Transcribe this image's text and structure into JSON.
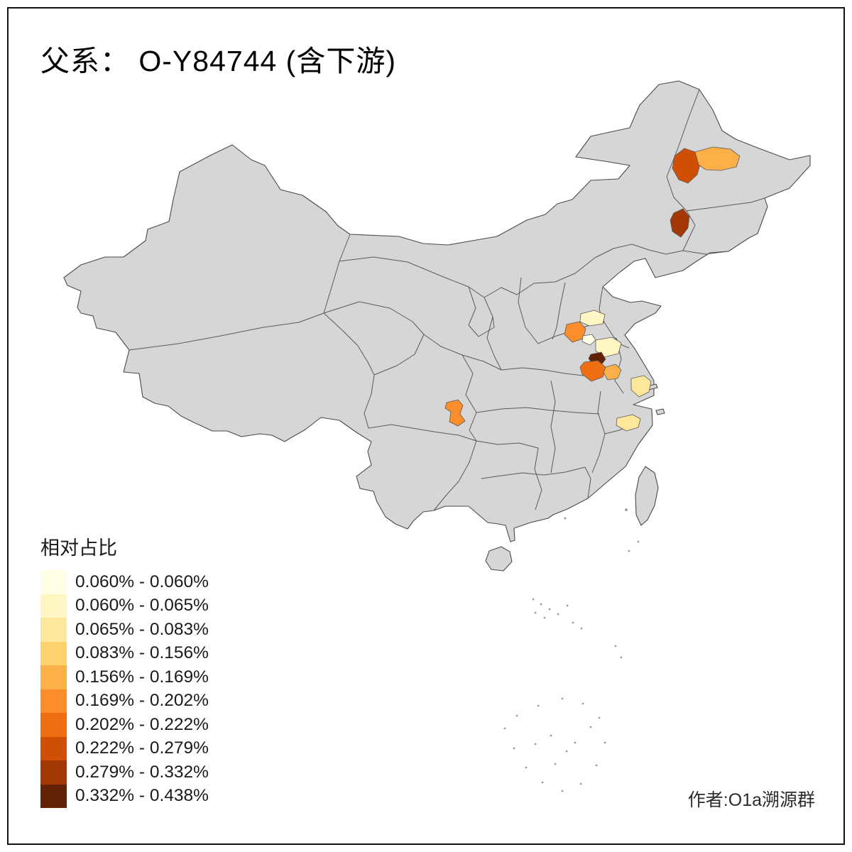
{
  "title": "父系： O-Y84744 (含下游)",
  "author_credit": "作者:O1a溯源群",
  "legend": {
    "title": "相对占比",
    "bins": [
      {
        "label": "0.060% - 0.060%",
        "color": "#FFFFE5"
      },
      {
        "label": "0.060% - 0.065%",
        "color": "#FFF6C3"
      },
      {
        "label": "0.065% - 0.083%",
        "color": "#FEE79B"
      },
      {
        "label": "0.083% - 0.156%",
        "color": "#FED26C"
      },
      {
        "label": "0.156% - 0.169%",
        "color": "#FDB048"
      },
      {
        "label": "0.169% - 0.202%",
        "color": "#FB8D2B"
      },
      {
        "label": "0.202% - 0.222%",
        "color": "#EF6E12"
      },
      {
        "label": "0.222% - 0.279%",
        "color": "#D14E05"
      },
      {
        "label": "0.279% - 0.332%",
        "color": "#A33804"
      },
      {
        "label": "0.332% - 0.438%",
        "color": "#632205"
      }
    ]
  },
  "map": {
    "base_fill": "#D6D6D6",
    "border_color": "#5A5A5A",
    "outer_border_color": "#4A4A4A",
    "island_speck_color": "#9E9E9E",
    "regions": [
      {
        "id": "northeast-west",
        "color": "#D14E05"
      },
      {
        "id": "northeast-east",
        "color": "#FDB048"
      },
      {
        "id": "jilin-south",
        "color": "#A33804"
      },
      {
        "id": "henan-north",
        "color": "#FFF6C3"
      },
      {
        "id": "henan-west",
        "color": "#FB8D2B"
      },
      {
        "id": "henan-center",
        "color": "#FFFFE5"
      },
      {
        "id": "henan-east",
        "color": "#FFF6C3"
      },
      {
        "id": "henan-southeast",
        "color": "#632205"
      },
      {
        "id": "anhui-northwest",
        "color": "#EF6E12"
      },
      {
        "id": "anhui-north",
        "color": "#FDB048"
      },
      {
        "id": "jiangsu-central",
        "color": "#FEE79B"
      },
      {
        "id": "sichuan-east",
        "color": "#FB8D2B"
      },
      {
        "id": "zhejiang-north",
        "color": "#FEE79B"
      }
    ]
  }
}
